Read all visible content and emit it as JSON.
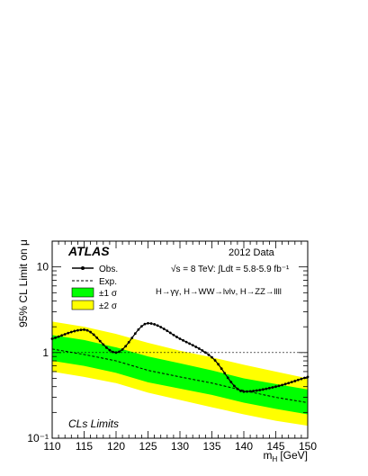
{
  "chart_data": {
    "type": "line",
    "title": "",
    "xlabel": "m",
    "xlabel_sub": "H",
    "xlabel_unit": "[GeV]",
    "ylabel": "95% CL Limit on μ",
    "xlim": [
      110,
      150
    ],
    "ylim": [
      0.1,
      20
    ],
    "yscale": "log",
    "x_ticks": [
      110,
      115,
      120,
      125,
      130,
      135,
      140,
      145,
      150
    ],
    "y_tick_labels": [
      {
        "value": 10,
        "text": "10"
      },
      {
        "value": 1,
        "text": "1"
      },
      {
        "value": 0.1,
        "text": "10⁻¹"
      }
    ],
    "reference_line": 1,
    "grid": false,
    "legend_position": "top-left",
    "annotations": {
      "experiment": "ATLAS",
      "dataset": "2012 Data",
      "energy_lumi": "√s = 8 TeV: ∫Ldt = 5.8-5.9 fb⁻¹",
      "channels": "H→γγ, H→WW→lνlν, H→ZZ→llll",
      "method": "CLs Limits"
    },
    "legend": [
      {
        "label": "Obs.",
        "style": "solid-marker"
      },
      {
        "label": "Exp.",
        "style": "dashed"
      },
      {
        "label": "±1 σ",
        "style": "band",
        "color": "#00ff00"
      },
      {
        "label": "±2 σ",
        "style": "band",
        "color": "#ffff00"
      }
    ],
    "colors": {
      "band_1sigma": "#00ff00",
      "band_2sigma": "#ffff00",
      "line": "#000000"
    },
    "x": [
      110,
      115,
      120,
      125,
      130,
      135,
      140,
      145,
      150
    ],
    "series": [
      {
        "name": "Obs.",
        "values": [
          1.45,
          1.85,
          1.0,
          2.2,
          1.45,
          0.88,
          0.35,
          0.4,
          0.52
        ]
      },
      {
        "name": "Exp.",
        "values": [
          1.1,
          0.95,
          0.8,
          0.62,
          0.52,
          0.44,
          0.36,
          0.3,
          0.26
        ]
      }
    ],
    "bands": [
      {
        "name": "±2 σ",
        "lower": [
          0.6,
          0.52,
          0.44,
          0.34,
          0.28,
          0.23,
          0.19,
          0.16,
          0.14
        ],
        "upper": [
          2.3,
          2.0,
          1.65,
          1.3,
          1.05,
          0.88,
          0.72,
          0.6,
          0.5
        ]
      },
      {
        "name": "±1 σ",
        "lower": [
          0.8,
          0.7,
          0.58,
          0.45,
          0.38,
          0.32,
          0.26,
          0.22,
          0.19
        ],
        "upper": [
          1.6,
          1.4,
          1.15,
          0.9,
          0.75,
          0.62,
          0.5,
          0.43,
          0.37
        ]
      }
    ]
  }
}
